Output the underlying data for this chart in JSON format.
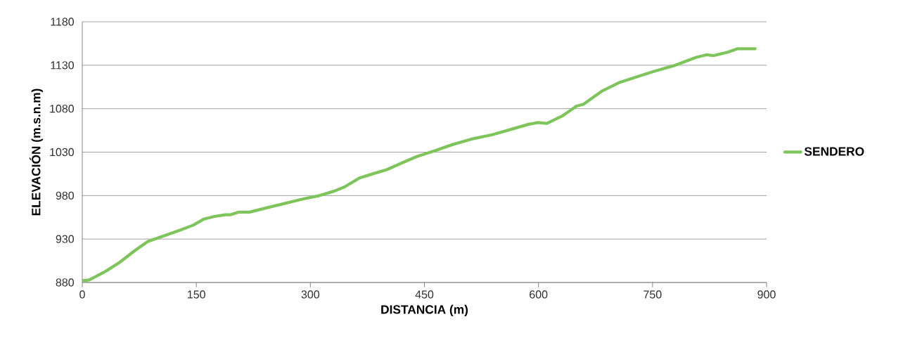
{
  "chart_data": {
    "type": "line",
    "xlabel": "DISTANCIA (m)",
    "ylabel": "ELEVACIÓN (m.s.n.m)",
    "xlim": [
      0,
      900
    ],
    "xticks": [
      0,
      150,
      300,
      450,
      600,
      750,
      900
    ],
    "ylim": [
      880,
      1180
    ],
    "yticks": [
      880,
      930,
      980,
      1030,
      1080,
      1130,
      1180
    ],
    "grid": "y",
    "legend": "right",
    "marker": "none",
    "line_style": "solid",
    "x": [
      0,
      9,
      18,
      31,
      49,
      68,
      86,
      105,
      128,
      146,
      160,
      174,
      188,
      195,
      206,
      220,
      243,
      262,
      290,
      312,
      331,
      345,
      364,
      382,
      401,
      419,
      440,
      465,
      488,
      512,
      539,
      567,
      587,
      599,
      611,
      632,
      650,
      659,
      683,
      706,
      752,
      780,
      807,
      821,
      830,
      849,
      862,
      885
    ],
    "series": [
      {
        "name": "SENDERO",
        "values": [
          882,
          883,
          887,
          893,
          903,
          916,
          927,
          933,
          940,
          946,
          953,
          956,
          958,
          958,
          961,
          961,
          966,
          970,
          976,
          980,
          985,
          990,
          1000,
          1005,
          1010,
          1017,
          1025,
          1032,
          1039,
          1045,
          1050,
          1057,
          1062,
          1064,
          1063,
          1072,
          1083,
          1085,
          1100,
          1110,
          1123,
          1130,
          1139,
          1142,
          1141,
          1145,
          1149,
          1149
        ],
        "color": "#7dc55a"
      }
    ]
  }
}
